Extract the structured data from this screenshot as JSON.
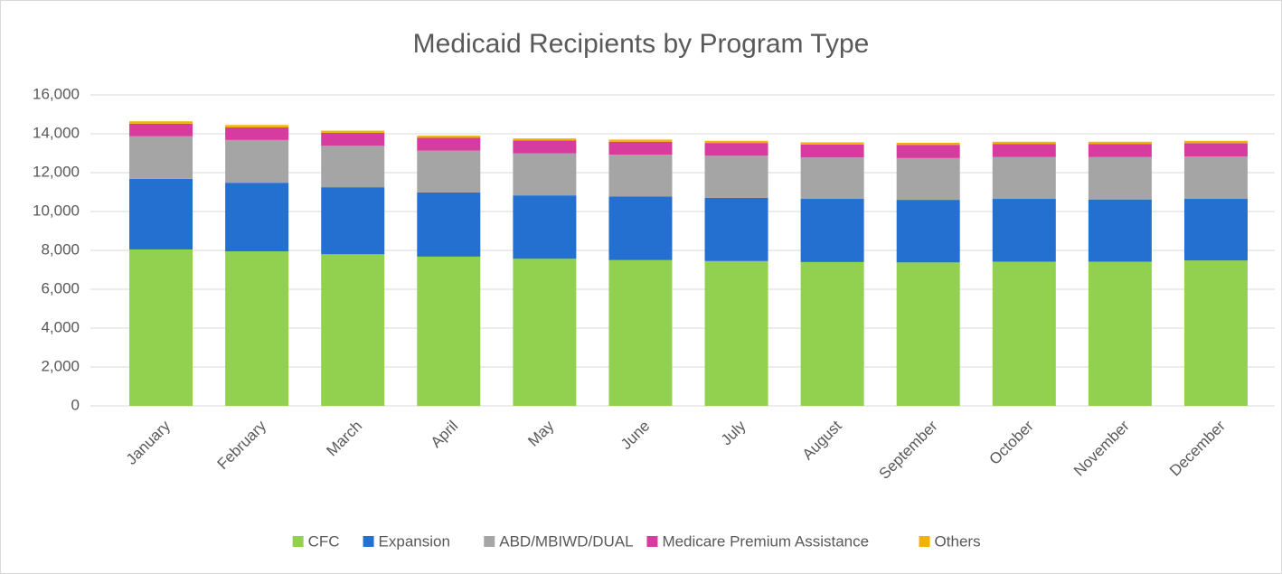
{
  "chart_data": {
    "type": "stacked_bar",
    "title": "Medicaid Recipients by Program Type",
    "categories": [
      "January",
      "February",
      "March",
      "April",
      "May",
      "June",
      "July",
      "August",
      "September",
      "October",
      "November",
      "December"
    ],
    "series": [
      {
        "name": "CFC",
        "color": "#92d050",
        "values": [
          8050,
          7950,
          7800,
          7680,
          7570,
          7500,
          7450,
          7400,
          7380,
          7420,
          7420,
          7480
        ]
      },
      {
        "name": "Expansion",
        "color": "#2370d0",
        "values": [
          3630,
          3530,
          3450,
          3300,
          3260,
          3270,
          3250,
          3250,
          3220,
          3230,
          3200,
          3170
        ]
      },
      {
        "name": "ABD/MBIWD/DUAL",
        "color": "#a5a5a5",
        "values": [
          2190,
          2200,
          2130,
          2150,
          2170,
          2160,
          2170,
          2130,
          2150,
          2150,
          2180,
          2180
        ]
      },
      {
        "name": "Medicare Premium Assistance",
        "color": "#d63ca0",
        "values": [
          650,
          650,
          670,
          660,
          650,
          660,
          660,
          670,
          680,
          680,
          680,
          690
        ]
      },
      {
        "name": "Others",
        "color": "#f0b400",
        "values": [
          120,
          120,
          110,
          110,
          110,
          110,
          110,
          110,
          110,
          110,
          110,
          120
        ]
      }
    ],
    "ylim": [
      0,
      16000
    ],
    "yticks": [
      0,
      {
        "value": 2000,
        "label": "2,000"
      },
      {
        "value": 4000,
        "label": "4,000"
      },
      {
        "value": 6000,
        "label": "6,000"
      },
      {
        "value": 8000,
        "label": "8,000"
      },
      {
        "value": 10000,
        "label": "10,000"
      },
      {
        "value": 12000,
        "label": "12,000"
      },
      {
        "value": 14000,
        "label": "14,000"
      },
      {
        "value": 16000,
        "label": "16,000"
      }
    ],
    "grid": true,
    "legend": "bottom"
  }
}
